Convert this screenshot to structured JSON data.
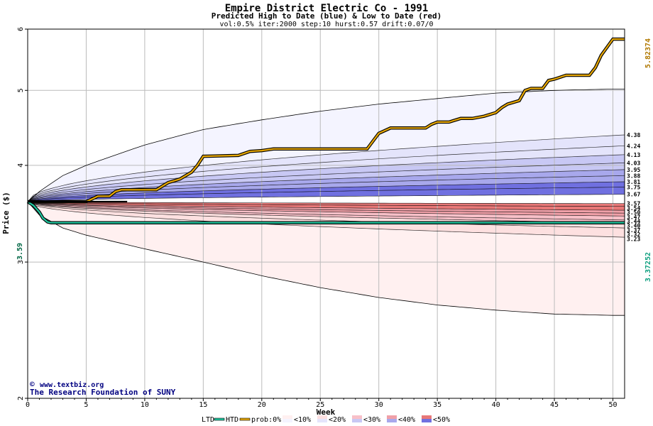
{
  "chart_data": {
    "type": "area",
    "title": "Empire District Electric Co - 1991",
    "subtitle": "Predicted High to Date (blue) &  Low to Date (red)",
    "params": "vol:0.5% iter:2000 step:10 hurst:0.57 drift:0.07/0",
    "xlabel": "Week",
    "ylabel": "Price ($)",
    "xlim": [
      0,
      51
    ],
    "ylim": [
      2,
      6
    ],
    "y_scale": "log",
    "grid": true,
    "x_ticks": [
      0,
      5,
      10,
      15,
      20,
      25,
      30,
      35,
      40,
      45,
      50
    ],
    "y_ticks": [
      2,
      3,
      4,
      5,
      6
    ],
    "start_price": 3.59,
    "start_price_label": "3.59",
    "ltd_final": 3.37252,
    "ltd_final_label": "3.37252",
    "htd_final": 5.82374,
    "htd_final_label": "5.82374",
    "right_labels": [
      "4.38",
      "4.24",
      "4.13",
      "4.03",
      "3.95",
      "3.88",
      "3.81",
      "3.75",
      "3.67",
      "3.57",
      "3.54",
      "3.50",
      "3.47",
      "3.44",
      "3.40",
      "3.37",
      "3.32",
      "3.23"
    ],
    "htd_series": {
      "name": "HTD",
      "color": "#e8a800",
      "points": [
        [
          0,
          3.59
        ],
        [
          5,
          3.59
        ],
        [
          5.5,
          3.62
        ],
        [
          6,
          3.65
        ],
        [
          7,
          3.65
        ],
        [
          7.5,
          3.7
        ],
        [
          8,
          3.72
        ],
        [
          10,
          3.72
        ],
        [
          11,
          3.72
        ],
        [
          11.5,
          3.76
        ],
        [
          12,
          3.8
        ],
        [
          13,
          3.84
        ],
        [
          14,
          3.92
        ],
        [
          14.5,
          4.0
        ],
        [
          15,
          4.11
        ],
        [
          18,
          4.12
        ],
        [
          19,
          4.17
        ],
        [
          20,
          4.18
        ],
        [
          21,
          4.2
        ],
        [
          29,
          4.2
        ],
        [
          29.5,
          4.3
        ],
        [
          30,
          4.4
        ],
        [
          31,
          4.47
        ],
        [
          34,
          4.47
        ],
        [
          34.5,
          4.52
        ],
        [
          35,
          4.55
        ],
        [
          36,
          4.55
        ],
        [
          37,
          4.6
        ],
        [
          38,
          4.6
        ],
        [
          39,
          4.63
        ],
        [
          40,
          4.68
        ],
        [
          40.5,
          4.75
        ],
        [
          41,
          4.8
        ],
        [
          42,
          4.85
        ],
        [
          42.5,
          5.0
        ],
        [
          43,
          5.03
        ],
        [
          44,
          5.03
        ],
        [
          44.5,
          5.15
        ],
        [
          45,
          5.17
        ],
        [
          46,
          5.23
        ],
        [
          48,
          5.23
        ],
        [
          48.5,
          5.35
        ],
        [
          49,
          5.55
        ],
        [
          50,
          5.82374
        ],
        [
          51,
          5.82374
        ]
      ]
    },
    "ltd_series": {
      "name": "LTD",
      "color": "#20c8a0",
      "points": [
        [
          0,
          3.59
        ],
        [
          0.5,
          3.55
        ],
        [
          1,
          3.48
        ],
        [
          1.3,
          3.42
        ],
        [
          1.7,
          3.38
        ],
        [
          2,
          3.37252
        ],
        [
          51,
          3.37252
        ]
      ]
    },
    "envelope_upper": [
      [
        0,
        3.59
      ],
      [
        1,
        3.7
      ],
      [
        3,
        3.88
      ],
      [
        5,
        4.0
      ],
      [
        8,
        4.15
      ],
      [
        10,
        4.25
      ],
      [
        15,
        4.45
      ],
      [
        20,
        4.58
      ],
      [
        25,
        4.7
      ],
      [
        30,
        4.8
      ],
      [
        35,
        4.88
      ],
      [
        40,
        4.96
      ],
      [
        45,
        5.0
      ],
      [
        50,
        5.02
      ],
      [
        51,
        5.02
      ]
    ],
    "envelope_lower": [
      [
        0,
        3.59
      ],
      [
        1,
        3.45
      ],
      [
        3,
        3.32
      ],
      [
        5,
        3.25
      ],
      [
        10,
        3.12
      ],
      [
        15,
        3.0
      ],
      [
        20,
        2.88
      ],
      [
        25,
        2.78
      ],
      [
        30,
        2.7
      ],
      [
        35,
        2.64
      ],
      [
        40,
        2.6
      ],
      [
        45,
        2.57
      ],
      [
        50,
        2.56
      ],
      [
        51,
        2.56
      ]
    ],
    "high_quantiles_final": [
      4.38,
      4.24,
      4.13,
      4.03,
      3.95,
      3.88,
      3.81,
      3.75,
      3.67
    ],
    "low_quantiles_final": [
      3.57,
      3.54,
      3.5,
      3.47,
      3.44,
      3.4,
      3.37,
      3.32,
      3.23
    ],
    "legend": {
      "ltd": "LTD",
      "htd": "HTD",
      "prob": "prob:0%",
      "bins": [
        "<10%",
        "<20%",
        "<30%",
        "<40%",
        "<50%"
      ],
      "low_colors": [
        "#fff0f0",
        "#fde0e0",
        "#f8c0c8",
        "#f0a0a8",
        "#e87878"
      ],
      "high_colors": [
        "#f4f4ff",
        "#e4e4fb",
        "#c8c8f4",
        "#a8a8ec",
        "#7070e0"
      ]
    },
    "credits": [
      "www.textbiz.org",
      "The Research Foundation of SUNY"
    ],
    "credits_symbol": "©"
  }
}
